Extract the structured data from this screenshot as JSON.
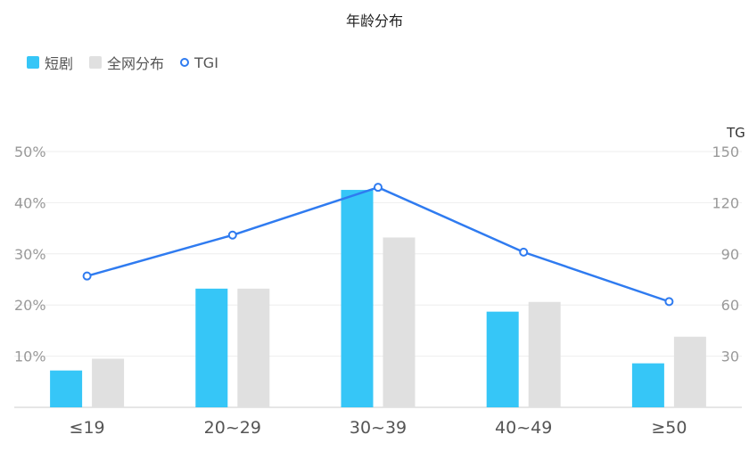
{
  "chart_data": {
    "type": "bar",
    "title": "年龄分布",
    "categories": [
      "≤19",
      "20~29",
      "30~39",
      "40~49",
      "≥50"
    ],
    "series": [
      {
        "name": "短剧",
        "type": "bar",
        "axis": "left",
        "color": "#36c6f7",
        "values": [
          7.2,
          23.2,
          42.5,
          18.7,
          8.6
        ]
      },
      {
        "name": "全网分布",
        "type": "bar",
        "axis": "left",
        "color": "#e0e0e0",
        "values": [
          9.5,
          23.2,
          33.2,
          20.6,
          13.8
        ]
      },
      {
        "name": "TGI",
        "type": "line",
        "axis": "right",
        "color": "#2f7bf0",
        "values": [
          77,
          101,
          129,
          91,
          62
        ]
      }
    ],
    "y_left": {
      "ticks": [
        "10%",
        "20%",
        "30%",
        "40%",
        "50%"
      ],
      "max": 50
    },
    "y_right": {
      "label": "TG",
      "ticks": [
        "30",
        "60",
        "90",
        "120",
        "150"
      ],
      "max": 150
    },
    "grid": true,
    "legend_position": "top-left"
  }
}
